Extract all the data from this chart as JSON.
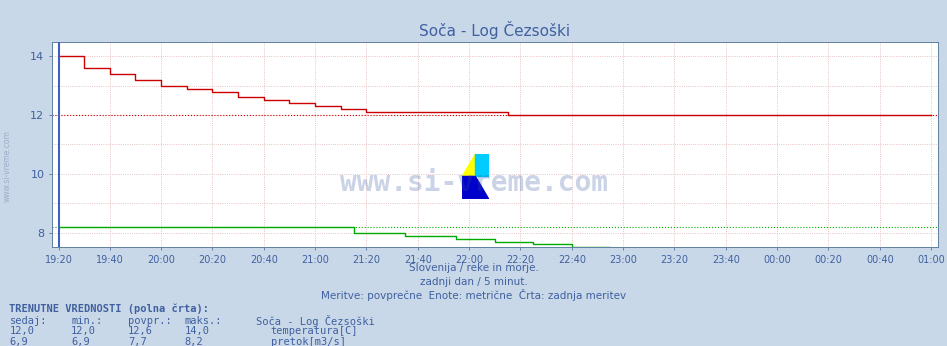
{
  "title": "Soča - Log Čezsoški",
  "bg_color": "#c8d8e8",
  "plot_bg_color": "#ffffff",
  "grid_color": "#e8c8c8",
  "border_color": "#6080a0",
  "text_color": "#4060a0",
  "xlabel_texts": [
    "19:20",
    "19:40",
    "20:00",
    "20:20",
    "20:40",
    "21:00",
    "21:20",
    "21:40",
    "22:00",
    "22:20",
    "22:40",
    "23:00",
    "23:20",
    "23:40",
    "00:00",
    "00:20",
    "00:40",
    "01:00"
  ],
  "ylim": [
    7.5,
    14.5
  ],
  "yticks": [
    8,
    10,
    12,
    14
  ],
  "watermark": "www.si-vreme.com",
  "sub_text1": "Slovenija / reke in morje.",
  "sub_text2": "zadnji dan / 5 minut.",
  "sub_text3": "Meritve: povprečne  Enote: metrične  Črta: zadnja meritev",
  "legend_title": "TRENUTNE VREDNOSTI (polna črta):",
  "col_headers": [
    "sedaj:",
    "min.:",
    "povpr.:",
    "maks.:",
    "Soča - Log Čezsoški"
  ],
  "row1_vals": [
    "12,0",
    "12,0",
    "12,6",
    "14,0"
  ],
  "row1_label": "temperatura[C]",
  "row2_vals": [
    "6,9",
    "6,9",
    "7,7",
    "8,2"
  ],
  "row2_label": "pretok[m3/s]",
  "temp_color": "#cc0000",
  "flow_color": "#00aa00",
  "sidebar_text": "www.si-vreme.com",
  "dashed_line_temp": 12.0,
  "dashed_line_flow": 8.2,
  "left_border_color": "#4060c0"
}
